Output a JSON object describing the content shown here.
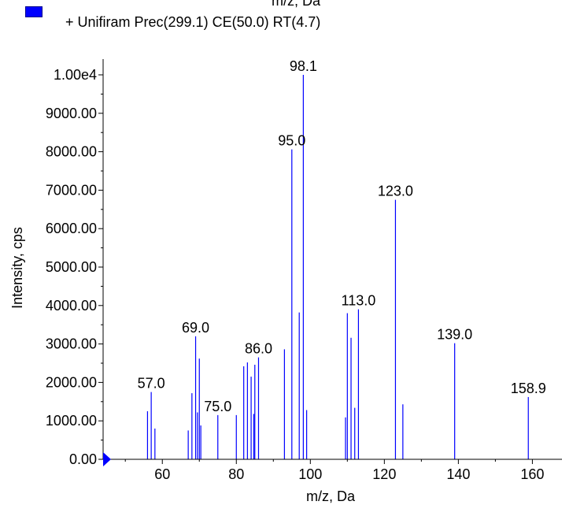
{
  "legend": {
    "series_label": "+ Unifiram Prec(299.1) CE(50.0) RT(4.7)",
    "swatch_color": "#0000ff"
  },
  "top_cut_label": "m/z, Da",
  "chart_data": {
    "type": "bar",
    "xlabel": "m/z, Da",
    "ylabel": "Intensity, cps",
    "xlim": [
      44,
      168
    ],
    "ylim": [
      0,
      10000
    ],
    "x_ticks": [
      "60",
      "80",
      "100",
      "120",
      "140",
      "160"
    ],
    "x_tick_values": [
      60,
      80,
      100,
      120,
      140,
      160
    ],
    "y_ticks": [
      "0.00",
      "1000.00",
      "2000.00",
      "3000.00",
      "4000.00",
      "5000.00",
      "6000.00",
      "7000.00",
      "8000.00",
      "9000.00",
      "1.00e4"
    ],
    "y_tick_values": [
      0,
      1000,
      2000,
      3000,
      4000,
      5000,
      6000,
      7000,
      8000,
      9000,
      10000
    ],
    "color": "#0000ff",
    "peaks": [
      {
        "x": 56.0,
        "y": 1250
      },
      {
        "x": 57.0,
        "y": 1750,
        "label": "57.0"
      },
      {
        "x": 58.0,
        "y": 800
      },
      {
        "x": 67.0,
        "y": 750
      },
      {
        "x": 68.0,
        "y": 1720
      },
      {
        "x": 69.0,
        "y": 3200,
        "label": "69.0"
      },
      {
        "x": 69.5,
        "y": 1220
      },
      {
        "x": 70.0,
        "y": 2620
      },
      {
        "x": 70.4,
        "y": 880
      },
      {
        "x": 75.0,
        "y": 1150,
        "label": "75.0"
      },
      {
        "x": 80.0,
        "y": 1150
      },
      {
        "x": 82.0,
        "y": 2420
      },
      {
        "x": 83.0,
        "y": 2520
      },
      {
        "x": 84.0,
        "y": 2150
      },
      {
        "x": 84.7,
        "y": 1180
      },
      {
        "x": 85.0,
        "y": 2460
      },
      {
        "x": 86.0,
        "y": 2650,
        "label": "86.0"
      },
      {
        "x": 93.0,
        "y": 2860
      },
      {
        "x": 95.0,
        "y": 8060,
        "label": "95.0"
      },
      {
        "x": 97.0,
        "y": 3820
      },
      {
        "x": 98.1,
        "y": 10000,
        "label": "98.1"
      },
      {
        "x": 99.0,
        "y": 1280
      },
      {
        "x": 109.5,
        "y": 1090
      },
      {
        "x": 110.0,
        "y": 3800
      },
      {
        "x": 111.0,
        "y": 3160
      },
      {
        "x": 112.0,
        "y": 1340
      },
      {
        "x": 113.0,
        "y": 3900,
        "label": "113.0"
      },
      {
        "x": 123.0,
        "y": 6750,
        "label": "123.0"
      },
      {
        "x": 125.0,
        "y": 1430
      },
      {
        "x": 139.0,
        "y": 3020,
        "label": "139.0"
      },
      {
        "x": 158.9,
        "y": 1620,
        "label": "158.9"
      }
    ]
  }
}
